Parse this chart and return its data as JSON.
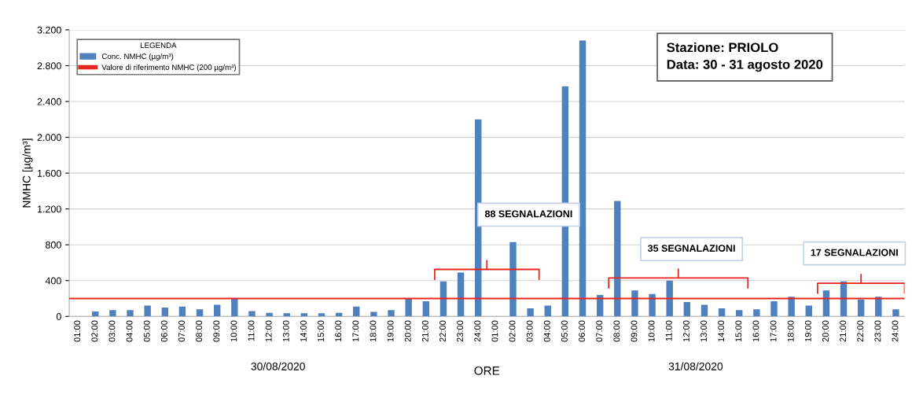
{
  "chart_data": {
    "type": "bar",
    "ylabel": "NMHC [µg/m³]",
    "xlabel": "ORE",
    "legend_title": "LEGENDA",
    "categories": [
      "01:00",
      "02:00",
      "03:00",
      "04:00",
      "05:00",
      "06:00",
      "07:00",
      "08:00",
      "09:00",
      "10:00",
      "11:00",
      "12:00",
      "13:00",
      "14:00",
      "15:00",
      "16:00",
      "17:00",
      "18:00",
      "19:00",
      "20:00",
      "21:00",
      "22:00",
      "23:00",
      "24:00",
      "01:00",
      "02:00",
      "03:00",
      "04:00",
      "05:00",
      "06:00",
      "07:00",
      "08:00",
      "09:00",
      "10:00",
      "11:00",
      "12:00",
      "13:00",
      "14:00",
      "15:00",
      "16:00",
      "17:00",
      "18:00",
      "19:00",
      "20:00",
      "21:00",
      "22:00",
      "23:00",
      "24:00"
    ],
    "series": [
      {
        "name": "Conc. NMHC (µg/m³)",
        "color": "#4f81bd",
        "values": [
          null,
          55,
          70,
          70,
          120,
          100,
          110,
          80,
          130,
          200,
          60,
          40,
          35,
          35,
          35,
          40,
          110,
          50,
          70,
          200,
          170,
          390,
          490,
          2200,
          null,
          830,
          90,
          120,
          2570,
          3080,
          240,
          1290,
          290,
          250,
          400,
          160,
          130,
          90,
          70,
          80,
          170,
          220,
          120,
          290,
          390,
          190,
          220,
          80
        ]
      }
    ],
    "ref_lines": [
      {
        "axis": "y",
        "value": 200,
        "label": "Valore di riferimento NMHC (200 µg/m³)",
        "color": "#e8261c"
      }
    ],
    "ylim": [
      0,
      3200
    ],
    "yticks": [
      0,
      400,
      800,
      {
        "value": 1200,
        "label": "1.200"
      },
      {
        "value": 1600,
        "label": "1.600"
      },
      {
        "value": 2000,
        "label": "2.000"
      },
      {
        "value": 2400,
        "label": "2.400"
      },
      {
        "value": 2800,
        "label": "2.800"
      },
      {
        "value": 3200,
        "label": "3.200"
      }
    ],
    "annotations": [
      "Stazione: PRIOLO\nData: 30 - 31 agosto 2020",
      "88 SEGNALAZIONI",
      "35 SEGNALAZIONI",
      "17 SEGNALAZIONI",
      "30/08/2020",
      "31/08/2020"
    ],
    "grid": "y",
    "legend": "top left"
  }
}
